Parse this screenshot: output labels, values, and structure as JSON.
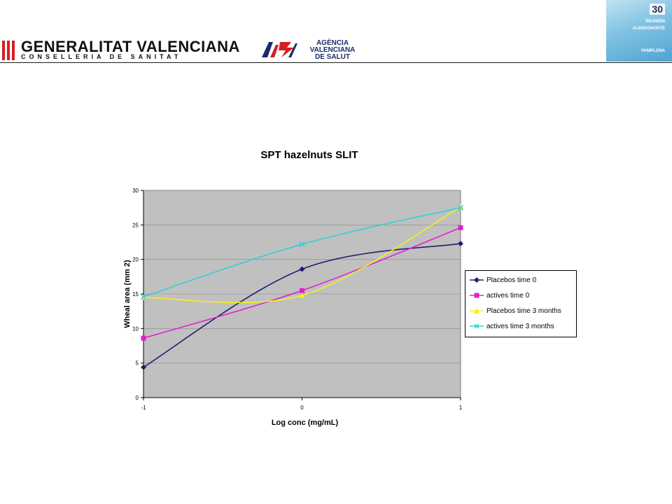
{
  "header": {
    "gv_name": "GENERALITAT VALENCIANA",
    "gv_sub": "CONSELLERIA DE SANITAT",
    "avs_line1": "AGÈNCIA",
    "avs_line2": "VALENCIANA",
    "avs_line3": "DE SALUT",
    "badge_number": "30",
    "badge_line1": "REUNIÓN",
    "badge_line2": "ALERGONORTE",
    "badge_line3": "PAMPLONA"
  },
  "colors": {
    "plot_bg": "#c0c0c0",
    "grid": "#888888",
    "placebos_t0": "#1f1f6e",
    "actives_t0": "#e020d0",
    "placebos_3m": "#f2f21a",
    "actives_3m": "#30d0d8"
  },
  "chart_data": {
    "type": "line",
    "title": "SPT hazelnuts SLIT",
    "xlabel": "Log conc (mg/mL)",
    "ylabel": "Wheal area (mm 2)",
    "x": [
      -1,
      0,
      1
    ],
    "xlim": [
      -1,
      1
    ],
    "ylim": [
      0,
      30
    ],
    "yticks": [
      0,
      5,
      10,
      15,
      20,
      25,
      30
    ],
    "xticks": [
      -1,
      0,
      1
    ],
    "legend_position": "right",
    "series": [
      {
        "name": "Placebos time 0",
        "values": [
          4.4,
          18.6,
          22.3
        ],
        "color": "#1f1f6e",
        "marker": "diamond"
      },
      {
        "name": "actives time 0",
        "values": [
          8.6,
          15.5,
          24.6
        ],
        "color": "#e020d0",
        "marker": "square"
      },
      {
        "name": "Placebos time 3 months",
        "values": [
          14.5,
          14.8,
          27.6
        ],
        "color": "#f2f21a",
        "marker": "triangle"
      },
      {
        "name": "actives time 3 months",
        "values": [
          14.6,
          22.2,
          27.5
        ],
        "color": "#30d0d8",
        "marker": "x"
      }
    ]
  }
}
